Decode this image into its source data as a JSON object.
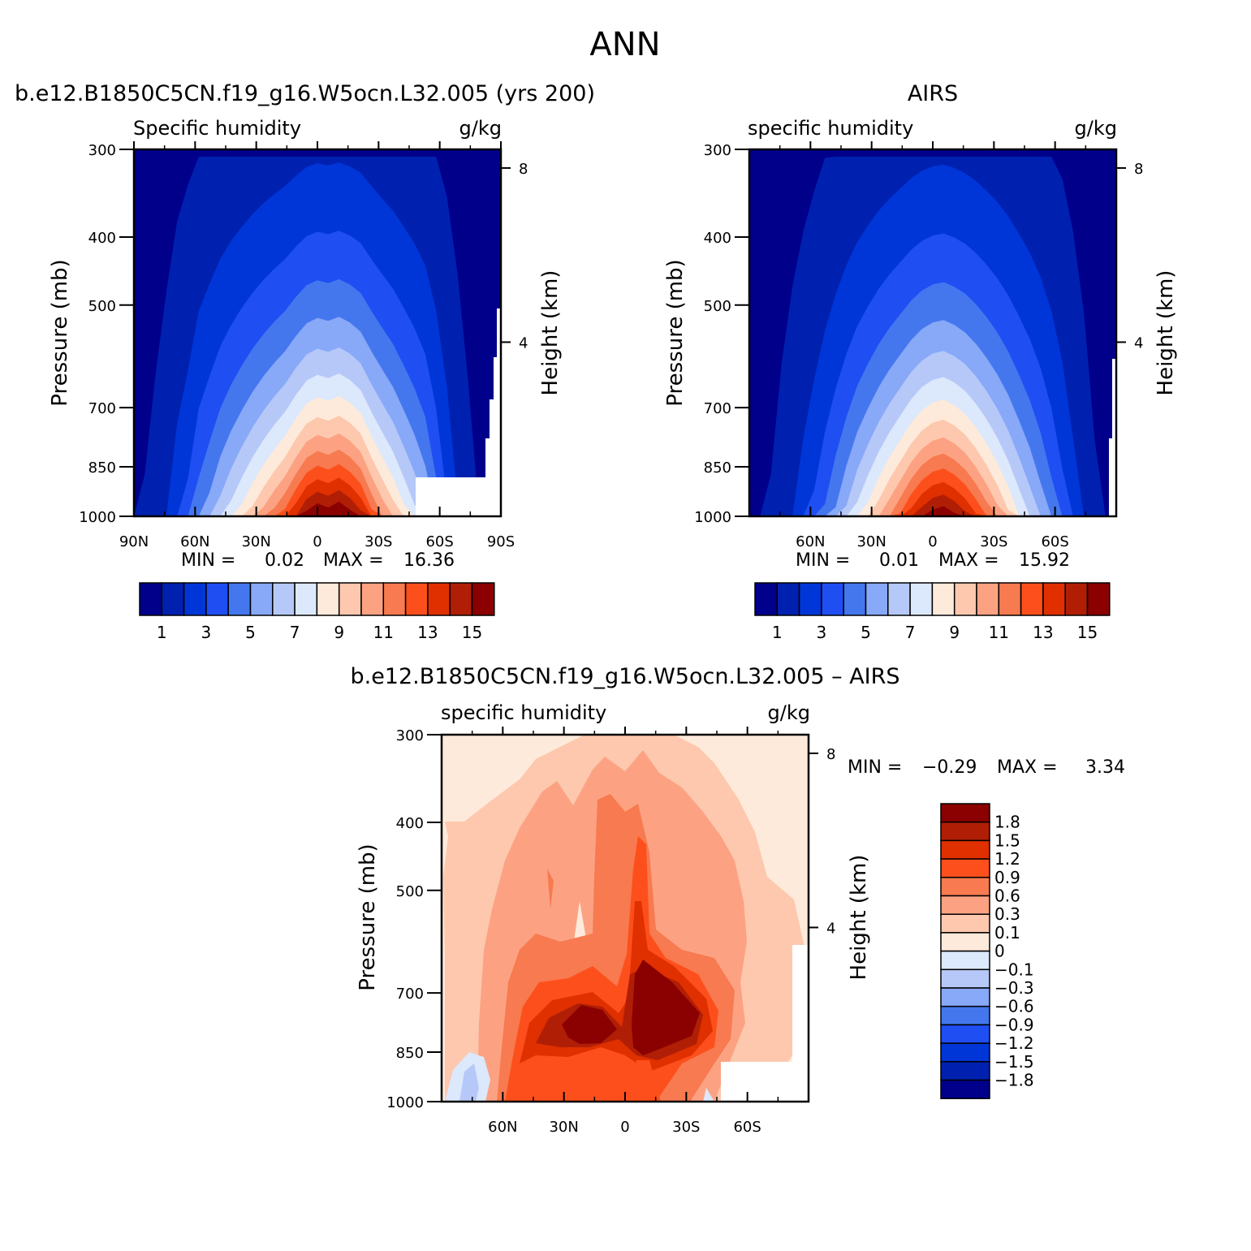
{
  "page_title": "ANN",
  "colors": {
    "fill_levels": [
      "#00008b",
      "#0021b0",
      "#0036d8",
      "#1f4ef3",
      "#4477ee",
      "#88a8f8",
      "#b6c8f8",
      "#dce8fb",
      "#feeadb",
      "#fdc8ae",
      "#fca282",
      "#f77a50",
      "#fd4f1c",
      "#e03000",
      "#b01e06",
      "#8b0000"
    ]
  },
  "chart_data": [
    {
      "type": "heatmap",
      "title": "b.e12.B1850C5CN.f19_g16.W5ocn.L32.005 (yrs 200)",
      "left_label": "Specific humidity",
      "right_label": "g/kg",
      "ylabel": "Pressure (mb)",
      "y2label": "Height (km)",
      "x_ticks": [
        "90N",
        "60N",
        "30N",
        "0",
        "30S",
        "60S",
        "90S"
      ],
      "y_ticks": [
        300,
        400,
        500,
        700,
        850,
        1000
      ],
      "y2_ticks": [
        8,
        4
      ],
      "ylim": [
        1000,
        300
      ],
      "min_label": "MIN =",
      "min_value": "0.02",
      "max_label": "MAX =",
      "max_value": "16.36",
      "colorbar_labels": [
        "1",
        "3",
        "5",
        "7",
        "9",
        "11",
        "13",
        "15"
      ],
      "profile_peaks": [
        0.7,
        1.1,
        1.45,
        1.95,
        2.75,
        3.45,
        4.7,
        5.55,
        6.6,
        7.55,
        8.5,
        9.5,
        10.5,
        11.5,
        12.5,
        14.0,
        15.5,
        16.2,
        15.8,
        16.36,
        15.6,
        14.5,
        12.5,
        11.0,
        9.8,
        8.5,
        7.4,
        6.3,
        4.7,
        3.2,
        2.1,
        1.4,
        0.9,
        0.5,
        0.2
      ]
    },
    {
      "type": "heatmap",
      "title": "AIRS",
      "left_label": "specific humidity",
      "right_label": "g/kg",
      "ylabel": "Pressure (mb)",
      "y2label": "Height (km)",
      "x_ticks": [
        "60N",
        "30N",
        "0",
        "30S",
        "60S"
      ],
      "y_ticks": [
        300,
        400,
        500,
        700,
        850,
        1000
      ],
      "y2_ticks": [
        8,
        4
      ],
      "ylim": [
        1000,
        300
      ],
      "min_label": "MIN =",
      "min_value": "0.01",
      "max_label": "MAX =",
      "max_value": "15.92",
      "colorbar_labels": [
        "1",
        "3",
        "5",
        "7",
        "9",
        "11",
        "13",
        "15"
      ],
      "profile_peaks": [
        0.4,
        0.8,
        1.1,
        1.5,
        2.0,
        2.6,
        3.3,
        4.2,
        5.2,
        6.3,
        7.5,
        8.6,
        9.8,
        11.0,
        12.2,
        13.6,
        14.8,
        15.6,
        15.92,
        15.3,
        14.4,
        13.2,
        11.9,
        10.6,
        9.3,
        8.0,
        6.9,
        5.8,
        4.7,
        3.6,
        2.6,
        1.8,
        1.2,
        0.8,
        0.5
      ]
    },
    {
      "type": "heatmap",
      "title": "b.e12.B1850C5CN.f19_g16.W5ocn.L32.005 – AIRS",
      "left_label": "specific humidity",
      "right_label": "g/kg",
      "ylabel": "Pressure (mb)",
      "y2label": "Height (km)",
      "x_ticks": [
        "60N",
        "30N",
        "0",
        "30S",
        "60S"
      ],
      "y_ticks": [
        300,
        400,
        500,
        700,
        850,
        1000
      ],
      "y2_ticks": [
        8,
        4
      ],
      "ylim": [
        1000,
        300
      ],
      "min_label": "MIN =",
      "min_value": "−0.29",
      "max_label": "MAX =",
      "max_value": "3.34",
      "colorbar_labels": [
        "1.8",
        "1.5",
        "1.2",
        "0.9",
        "0.6",
        "0.3",
        "0.1",
        "0",
        "−0.1",
        "−0.3",
        "−0.6",
        "−0.9",
        "−1.2",
        "−1.5",
        "−1.8"
      ]
    }
  ]
}
